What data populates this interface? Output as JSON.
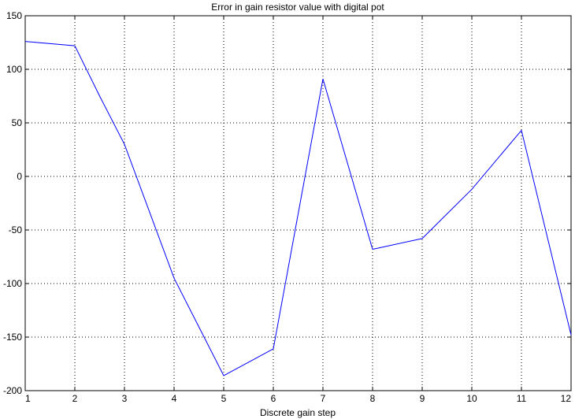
{
  "chart_data": {
    "type": "line",
    "title": "Error in gain resistor value with digital pot",
    "xlabel": "Discrete gain step",
    "ylabel": "",
    "xlim": [
      1,
      12
    ],
    "ylim": [
      -200,
      150
    ],
    "xticks": [
      1,
      2,
      3,
      4,
      5,
      6,
      7,
      8,
      9,
      10,
      11,
      12
    ],
    "yticks": [
      150,
      100,
      50,
      0,
      -50,
      -100,
      -150,
      -200
    ],
    "grid": true,
    "series": [
      {
        "color": "#0000ff",
        "x": [
          1,
          2,
          2.5,
          3,
          4,
          5,
          6,
          7,
          8,
          9,
          10,
          11,
          12
        ],
        "y": [
          126,
          122,
          75,
          30,
          -95,
          -186,
          -161,
          91,
          -68,
          -58,
          -12,
          43,
          -148
        ]
      }
    ]
  }
}
